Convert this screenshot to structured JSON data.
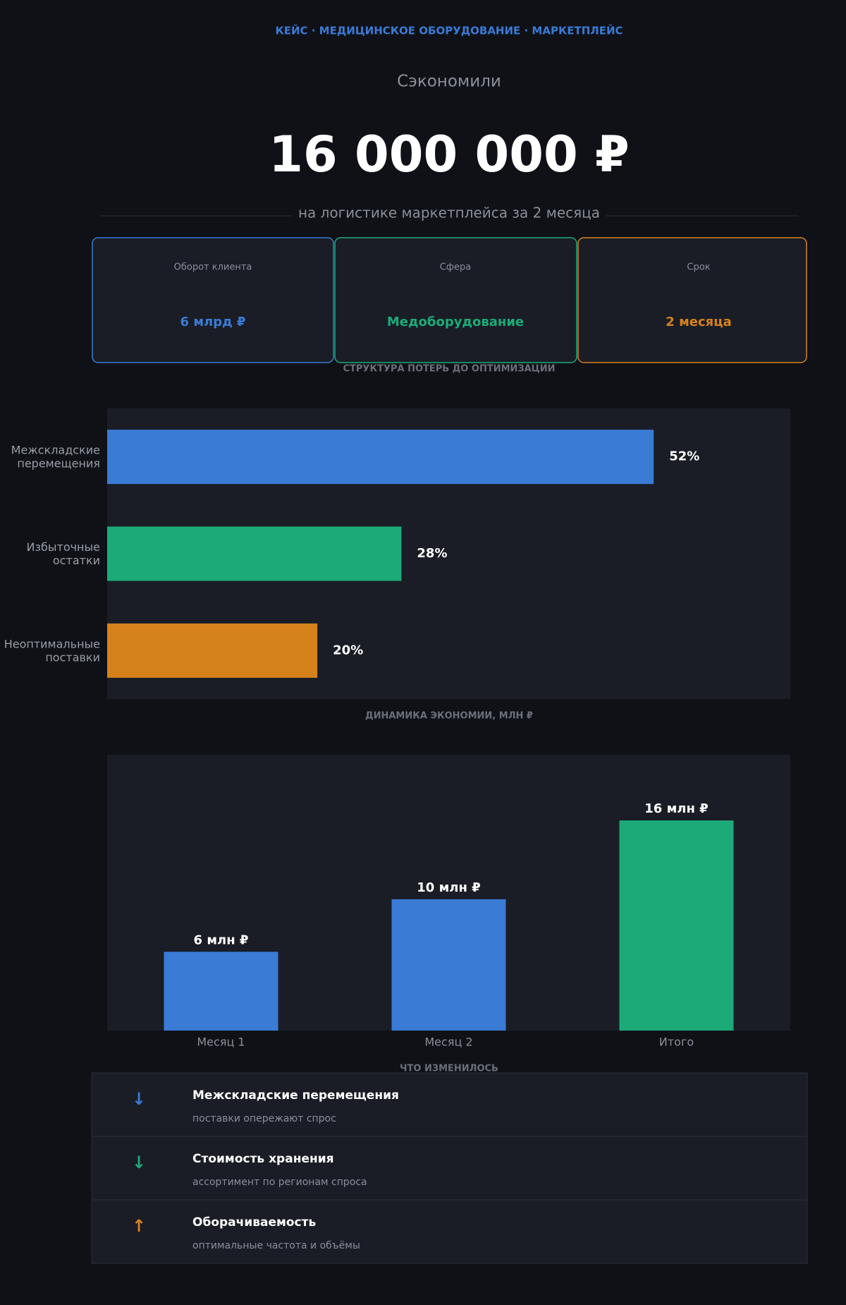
{
  "header": {
    "kicker": "КЕЙС · МЕДИЦИНСКОЕ ОБОРУДОВАНИЕ · МАРКЕТПЛЕЙС",
    "lead": "Сэкономили",
    "amount": "16 000 000 ₽",
    "caption": "на логистике маркетплейса за 2 месяца"
  },
  "cards": [
    {
      "label": "Оборот клиента",
      "value": "6 млрд ₽",
      "color": "#3a7bd5"
    },
    {
      "label": "Сфера",
      "value": "Медоборудование",
      "color": "#1cab78"
    },
    {
      "label": "Срок",
      "value": "2 месяца",
      "color": "#d6821c"
    }
  ],
  "chart_data": [
    {
      "type": "hbar",
      "title": "СТРУКТУРА ПОТЕРЬ ДО ОПТИМИЗАЦИИ",
      "categories": [
        "Межскладские перемещения",
        "Избыточные остатки",
        "Неоптимальные поставки"
      ],
      "values": [
        52,
        28,
        20
      ],
      "value_labels": [
        "52%",
        "28%",
        "20%"
      ],
      "colors": [
        "#3a7bd5",
        "#1cab78",
        "#d6821c"
      ],
      "xlim": [
        0,
        65
      ]
    },
    {
      "type": "bar",
      "title": "ДИНАМИКА ЭКОНОМИИ, МЛН ₽",
      "categories": [
        "Месяц 1",
        "Месяц 2",
        "Итого"
      ],
      "values": [
        6,
        10,
        16
      ],
      "value_labels": [
        "6 млн ₽",
        "10 млн ₽",
        "16 млн ₽"
      ],
      "colors": [
        "#3a7bd5",
        "#3a7bd5",
        "#1cab78"
      ],
      "ylim": [
        0,
        21
      ]
    }
  ],
  "changes": {
    "title": "ЧТО ИЗМЕНИЛОСЬ",
    "items": [
      {
        "icon": "↓",
        "color": "#3a7bd5",
        "title": "Межскладские перемещения",
        "text": "поставки опережают спрос"
      },
      {
        "icon": "↓",
        "color": "#1cab78",
        "title": "Стоимость хранения",
        "text": "ассортимент по регионам спроса"
      },
      {
        "icon": "↑",
        "color": "#d6821c",
        "title": "Оборачиваемость",
        "text": "оптимальные частота и объёмы"
      }
    ]
  }
}
